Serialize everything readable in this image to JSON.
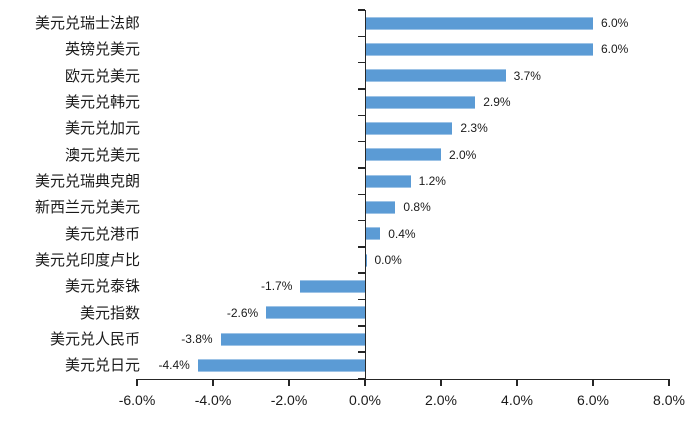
{
  "chart_data": {
    "type": "bar",
    "orientation": "horizontal",
    "title": "",
    "xlabel": "",
    "ylabel": "",
    "xlim": [
      -6,
      8
    ],
    "grid": false,
    "legend_position": "none",
    "bar_color": "#5B9BD5",
    "bar_edge_color": "#9DC3E6",
    "axis_color": "#262626",
    "text_color": "#1A1A1A",
    "categories": [
      "美元兑瑞士法郎",
      "英镑兑美元",
      "欧元兑美元",
      "美元兑韩元",
      "美元兑加元",
      "澳元兑美元",
      "美元兑瑞典克朗",
      "新西兰元兑美元",
      "美元兑港币",
      "美元兑印度卢比",
      "美元兑泰铢",
      "美元指数",
      "美元兑人民币",
      "美元兑日元"
    ],
    "values": [
      6.0,
      6.0,
      3.7,
      2.9,
      2.3,
      2.0,
      1.2,
      0.8,
      0.4,
      0.0,
      -1.7,
      -2.6,
      -3.8,
      -4.4
    ],
    "value_labels": [
      "6.0%",
      "6.0%",
      "3.7%",
      "2.9%",
      "2.3%",
      "2.0%",
      "1.2%",
      "0.8%",
      "0.4%",
      "0.0%",
      "-1.7%",
      "-2.6%",
      "-3.8%",
      "-4.4%"
    ],
    "x_tick_values": [
      -6,
      -4,
      -2,
      0,
      2,
      4,
      6,
      8
    ],
    "x_tick_labels": [
      "-6.0%",
      "-4.0%",
      "-2.0%",
      "0.0%",
      "2.0%",
      "4.0%",
      "6.0%",
      "8.0%"
    ]
  }
}
